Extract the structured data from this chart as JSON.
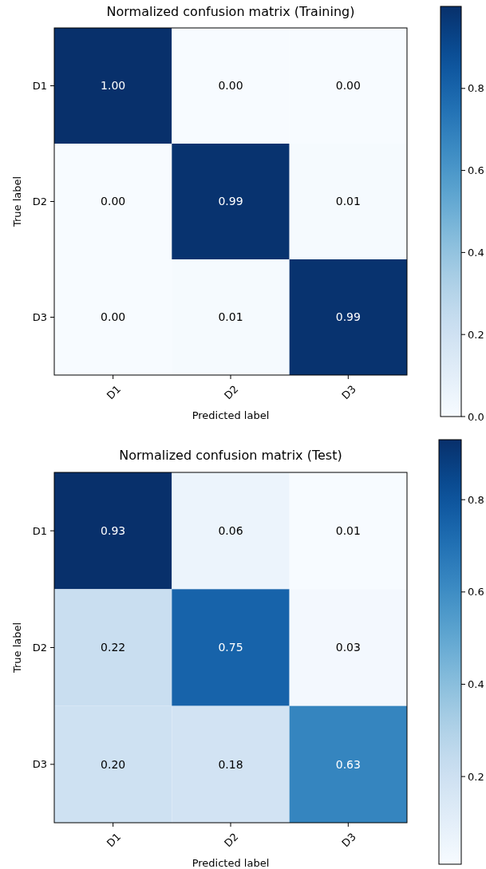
{
  "chart_data": [
    {
      "type": "heatmap",
      "title": "Normalized confusion matrix (Training)",
      "xlabel": "Predicted label",
      "ylabel": "True label",
      "categories": [
        "D1",
        "D2",
        "D3"
      ],
      "y_categories": [
        "D1",
        "D2",
        "D3"
      ],
      "cells": [
        [
          1.0,
          0.0,
          0.0
        ],
        [
          0.0,
          0.99,
          0.01
        ],
        [
          0.0,
          0.01,
          0.99
        ]
      ],
      "cell_labels": [
        [
          "1.00",
          "0.00",
          "0.00"
        ],
        [
          "0.00",
          "0.99",
          "0.01"
        ],
        [
          "0.00",
          "0.01",
          "0.99"
        ]
      ],
      "clim": [
        0,
        1
      ],
      "cticks": [
        {
          "value": 0,
          "label": "0.0"
        },
        {
          "value": 0.2,
          "label": "0.2"
        },
        {
          "value": 0.4,
          "label": "0.4"
        },
        {
          "value": 0.6,
          "label": "0.6"
        },
        {
          "value": 0.8,
          "label": "0.8"
        }
      ]
    },
    {
      "type": "heatmap",
      "title": "Normalized confusion matrix (Test)",
      "xlabel": "Predicted label",
      "ylabel": "True label",
      "categories": [
        "D1",
        "D2",
        "D3"
      ],
      "y_categories": [
        "D1",
        "D2",
        "D3"
      ],
      "cells": [
        [
          0.93,
          0.06,
          0.01
        ],
        [
          0.22,
          0.75,
          0.03
        ],
        [
          0.2,
          0.18,
          0.63
        ]
      ],
      "cell_labels": [
        [
          "0.93",
          "0.06",
          "0.01"
        ],
        [
          "0.22",
          "0.75",
          "0.03"
        ],
        [
          "0.20",
          "0.18",
          "0.63"
        ]
      ],
      "clim": [
        0.01,
        0.93
      ],
      "cticks": [
        {
          "value": 0.2,
          "label": "0.2"
        },
        {
          "value": 0.4,
          "label": "0.4"
        },
        {
          "value": 0.6,
          "label": "0.6"
        },
        {
          "value": 0.8,
          "label": "0.8"
        }
      ]
    }
  ]
}
